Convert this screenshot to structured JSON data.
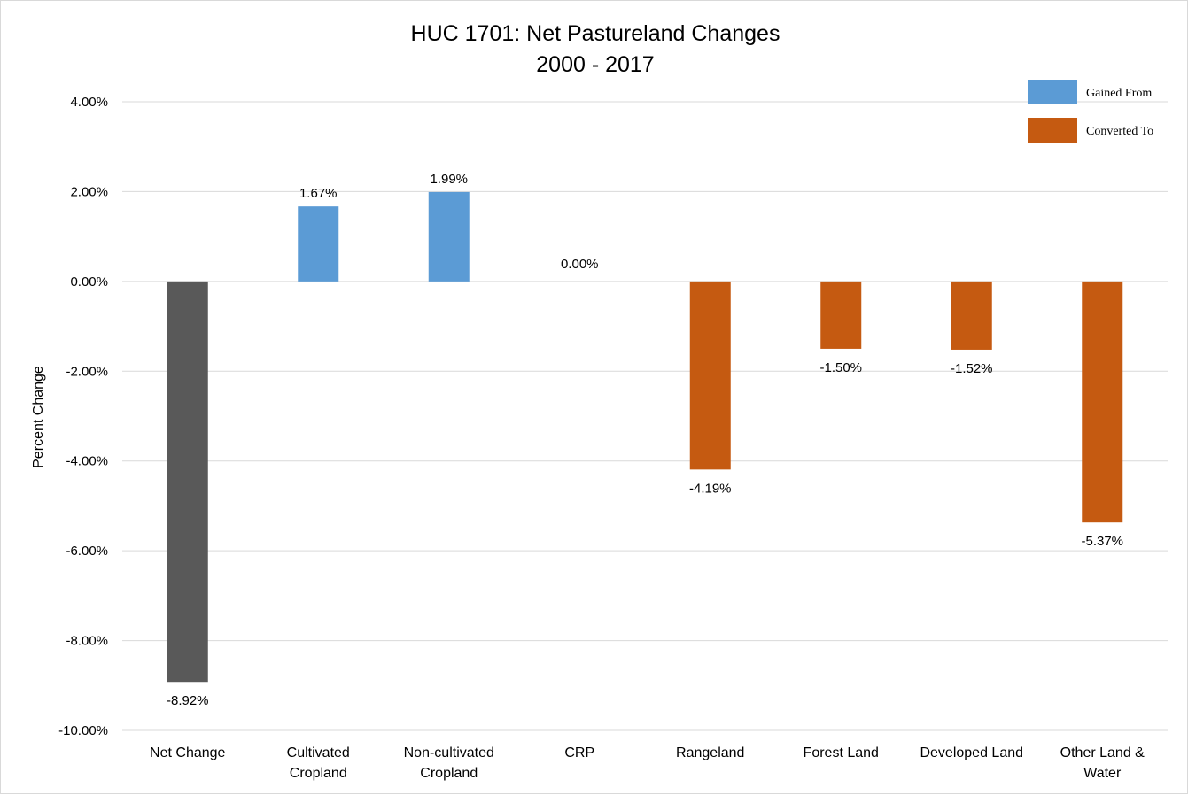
{
  "chart_data": {
    "type": "bar",
    "title_lines": [
      "HUC 1701: Net Pastureland Changes",
      "2000 - 2017"
    ],
    "ylabel": "Percent Change",
    "ylim": [
      -10,
      4
    ],
    "yticks": [
      4,
      2,
      0,
      -2,
      -4,
      -6,
      -8,
      -10
    ],
    "ytick_labels": [
      "4.00%",
      "2.00%",
      "0.00%",
      "-2.00%",
      "-4.00%",
      "-6.00%",
      "-8.00%",
      "-10.00%"
    ],
    "grid": true,
    "legend_position": "top-right",
    "categories": [
      [
        "Net Change"
      ],
      [
        "Cultivated",
        "Cropland"
      ],
      [
        "Non-cultivated",
        "Cropland"
      ],
      [
        "CRP"
      ],
      [
        "Rangeland"
      ],
      [
        "Forest Land"
      ],
      [
        "Developed Land"
      ],
      [
        "Other Land &",
        "Water"
      ]
    ],
    "values": [
      -8.92,
      1.67,
      1.99,
      0.0,
      -4.19,
      -1.5,
      -1.52,
      -5.37
    ],
    "value_labels": [
      "-8.92%",
      "1.67%",
      "1.99%",
      "0.00%",
      "-4.19%",
      "-1.50%",
      "-1.52%",
      "-5.37%"
    ],
    "bar_groups": [
      "net",
      "gained",
      "gained",
      "gained",
      "converted",
      "converted",
      "converted",
      "converted"
    ],
    "legend": [
      {
        "key": "gained",
        "label": "Gained From",
        "color": "#5b9bd5"
      },
      {
        "key": "converted",
        "label": "Converted To",
        "color": "#c55a11"
      }
    ],
    "colors": {
      "net": "#595959",
      "gained": "#5b9bd5",
      "converted": "#c55a11"
    }
  }
}
